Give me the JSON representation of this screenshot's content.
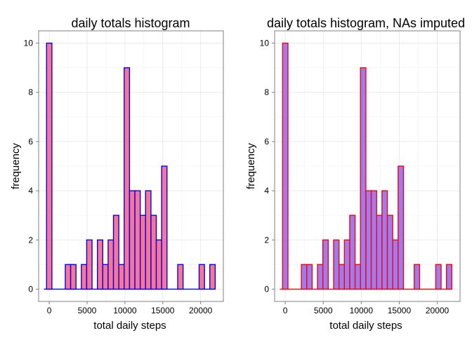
{
  "chart_data": [
    {
      "type": "bar",
      "title": "daily totals histogram",
      "xlabel": "total daily steps",
      "ylabel": "frequency",
      "xlim": [
        -1400,
        23000
      ],
      "ylim": [
        -0.5,
        10.5
      ],
      "xticks": [
        0,
        5000,
        10000,
        15000,
        20000
      ],
      "xtick_labels": [
        "0",
        "5000",
        "10000",
        "15000",
        "20000"
      ],
      "yticks": [
        0,
        2,
        4,
        6,
        8,
        10
      ],
      "ytick_labels": [
        "0",
        "2",
        "4",
        "6",
        "8",
        "10"
      ],
      "binwidth": 707,
      "bins": [
        {
          "x": 0,
          "count": 10
        },
        {
          "x": 2475,
          "count": 1
        },
        {
          "x": 3182,
          "count": 1
        },
        {
          "x": 4596,
          "count": 1
        },
        {
          "x": 5303,
          "count": 2
        },
        {
          "x": 6718,
          "count": 2
        },
        {
          "x": 7425,
          "count": 1
        },
        {
          "x": 8132,
          "count": 2
        },
        {
          "x": 8839,
          "count": 3
        },
        {
          "x": 9546,
          "count": 1
        },
        {
          "x": 10253,
          "count": 9
        },
        {
          "x": 10961,
          "count": 4
        },
        {
          "x": 11668,
          "count": 4
        },
        {
          "x": 12375,
          "count": 3
        },
        {
          "x": 13082,
          "count": 4
        },
        {
          "x": 13789,
          "count": 3
        },
        {
          "x": 14496,
          "count": 2
        },
        {
          "x": 15203,
          "count": 5
        },
        {
          "x": 17325,
          "count": 1
        },
        {
          "x": 20153,
          "count": 1
        },
        {
          "x": 21567,
          "count": 1
        }
      ],
      "baseline_range": [
        -707,
        21920
      ],
      "fill_color": "#f8768f",
      "stroke_color": "#0000ff",
      "grid": true
    },
    {
      "type": "bar",
      "title": "daily totals histogram, NAs imputed",
      "xlabel": "total daily steps",
      "ylabel": "frequency",
      "xlim": [
        -1400,
        23000
      ],
      "ylim": [
        -0.5,
        10.5
      ],
      "xticks": [
        0,
        5000,
        10000,
        15000,
        20000
      ],
      "xtick_labels": [
        "0",
        "5000",
        "10000",
        "15000",
        "20000"
      ],
      "yticks": [
        0,
        2,
        4,
        6,
        8,
        10
      ],
      "ytick_labels": [
        "0",
        "2",
        "4",
        "6",
        "8",
        "10"
      ],
      "binwidth": 707,
      "bins": [
        {
          "x": 0,
          "count": 10
        },
        {
          "x": 2475,
          "count": 1
        },
        {
          "x": 3182,
          "count": 1
        },
        {
          "x": 4596,
          "count": 1
        },
        {
          "x": 5303,
          "count": 2
        },
        {
          "x": 6718,
          "count": 2
        },
        {
          "x": 7425,
          "count": 1
        },
        {
          "x": 8132,
          "count": 2
        },
        {
          "x": 8839,
          "count": 3
        },
        {
          "x": 9546,
          "count": 1
        },
        {
          "x": 10253,
          "count": 9
        },
        {
          "x": 10961,
          "count": 4
        },
        {
          "x": 11668,
          "count": 4
        },
        {
          "x": 12375,
          "count": 3
        },
        {
          "x": 13082,
          "count": 4
        },
        {
          "x": 13789,
          "count": 3
        },
        {
          "x": 14496,
          "count": 2
        },
        {
          "x": 15203,
          "count": 5
        },
        {
          "x": 17325,
          "count": 1
        },
        {
          "x": 20153,
          "count": 1
        },
        {
          "x": 21567,
          "count": 1
        }
      ],
      "baseline_range": [
        -707,
        21920
      ],
      "fill_color": "#9c7cf0",
      "stroke_color": "#ff0000",
      "grid": true
    }
  ]
}
